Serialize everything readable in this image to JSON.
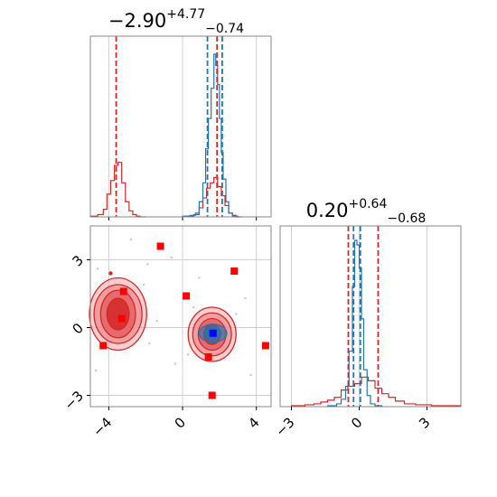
{
  "chart_data": {
    "type": "corner",
    "grid": true,
    "colors": {
      "red": "#d62728",
      "blue": "#1f77b4",
      "fill_light": "#f4a6a8",
      "fill_dark": "#d62728",
      "marker_red": "#ff0000",
      "marker_blue": "#0000ff",
      "frame": "#888888",
      "grid": "#d0d0d0"
    },
    "x_param": {
      "title": {
        "value": "−2.90",
        "plus": "+4.77",
        "minus": "−0.74"
      },
      "range": [
        -5.0,
        4.8
      ],
      "ticks": [
        -4,
        0,
        4
      ],
      "tick_labels": [
        "−4",
        "0",
        "4"
      ],
      "quantile_lines_red": [
        -3.6,
        1.87
      ],
      "quantile_lines_blue": [
        1.35,
        2.15
      ]
    },
    "y_param": {
      "title": {
        "value": "0.20",
        "plus": "+0.64",
        "minus": "−0.68"
      },
      "range": [
        -3.5,
        4.5
      ],
      "ticks": [
        -3,
        0,
        3
      ],
      "tick_labels": [
        "−3",
        "0",
        "3"
      ],
      "quantile_lines_red": [
        -0.48,
        0.84
      ],
      "quantile_lines_blue": [
        -0.25,
        0.05
      ]
    },
    "hist_x_red": {
      "bins": [
        -5.0,
        -4.6,
        -4.3,
        -4.1,
        -3.9,
        -3.7,
        -3.5,
        -3.3,
        -3.1,
        -2.9,
        -2.7,
        -2.5,
        -2.3,
        -2.0
      ],
      "counts": [
        1,
        3,
        10,
        30,
        48,
        68,
        72,
        45,
        20,
        8,
        3,
        1,
        0
      ]
    },
    "hist_x_red_right": {
      "bins": [
        0.2,
        0.6,
        0.9,
        1.1,
        1.3,
        1.5,
        1.7,
        1.9,
        2.1,
        2.3,
        2.5,
        2.7,
        2.9,
        3.2
      ],
      "counts": [
        1,
        3,
        12,
        25,
        38,
        45,
        52,
        40,
        28,
        15,
        5,
        2,
        0
      ]
    },
    "hist_x_blue": {
      "bins": [
        0.0,
        0.4,
        0.7,
        0.9,
        1.1,
        1.25,
        1.4,
        1.55,
        1.7,
        1.8,
        1.9,
        2.0,
        2.1,
        2.2,
        2.35,
        2.5,
        2.7,
        3.0
      ],
      "counts": [
        1,
        2,
        5,
        20,
        45,
        90,
        130,
        170,
        215,
        200,
        175,
        130,
        85,
        50,
        20,
        5,
        1
      ]
    },
    "hist_y_red": {
      "bins": [
        -3.0,
        -2.4,
        -2.0,
        -1.7,
        -1.4,
        -1.1,
        -0.8,
        -0.5,
        -0.2,
        0.1,
        0.4,
        0.7,
        1.0,
        1.3,
        1.6,
        2.0,
        2.5,
        3.2,
        4.5
      ],
      "counts": [
        1,
        2,
        3,
        5,
        7,
        10,
        18,
        22,
        25,
        32,
        28,
        20,
        14,
        10,
        6,
        3,
        2,
        1
      ]
    },
    "hist_y_blue": {
      "bins": [
        -1.4,
        -1.0,
        -0.8,
        -0.6,
        -0.45,
        -0.3,
        -0.2,
        -0.1,
        0.0,
        0.1,
        0.2,
        0.35,
        0.5,
        0.7,
        1.0
      ],
      "counts": [
        1,
        3,
        8,
        22,
        60,
        130,
        180,
        175,
        150,
        95,
        40,
        12,
        3,
        1
      ]
    },
    "contours_red": [
      {
        "cx": -3.5,
        "cy": 0.6,
        "levels": [
          [
            1.55,
            1.6
          ],
          [
            1.3,
            1.3
          ],
          [
            0.95,
            1.05
          ],
          [
            0.6,
            0.7
          ]
        ]
      },
      {
        "cx": 1.6,
        "cy": -0.3,
        "levels": [
          [
            1.3,
            1.2
          ],
          [
            1.05,
            0.95
          ],
          [
            0.75,
            0.7
          ],
          [
            0.45,
            0.45
          ]
        ]
      }
    ],
    "contours_blue": [
      {
        "cx": 1.65,
        "cy": -0.25,
        "levels": [
          [
            0.75,
            0.4
          ],
          [
            0.45,
            0.25
          ]
        ]
      }
    ],
    "markers_red": [
      {
        "x": -1.2,
        "y": 3.6
      },
      {
        "x": 2.8,
        "y": 2.5
      },
      {
        "x": -3.2,
        "y": 1.6
      },
      {
        "x": 0.2,
        "y": 1.4
      },
      {
        "x": -3.3,
        "y": 0.4
      },
      {
        "x": -4.3,
        "y": -0.8
      },
      {
        "x": 1.4,
        "y": -1.3
      },
      {
        "x": 1.6,
        "y": -3.0
      },
      {
        "x": 4.5,
        "y": -0.8
      }
    ],
    "marker_blue": {
      "x": 1.65,
      "y": -0.25
    },
    "scatter_light": [
      {
        "x": -2.8,
        "y": 3.9
      },
      {
        "x": -1.9,
        "y": 2.8
      },
      {
        "x": -0.6,
        "y": 3.1
      },
      {
        "x": 0.9,
        "y": 2.2
      },
      {
        "x": -4.6,
        "y": 2.6
      },
      {
        "x": -2.1,
        "y": 1.9
      },
      {
        "x": 3.4,
        "y": 1.3
      },
      {
        "x": -0.4,
        "y": -1.6
      },
      {
        "x": 0.3,
        "y": -1.2
      },
      {
        "x": -4.7,
        "y": -1.9
      },
      {
        "x": 3.7,
        "y": -2.1
      },
      {
        "x": -1.4,
        "y": 0.3
      },
      {
        "x": 2.9,
        "y": 0.6
      },
      {
        "x": -1.8,
        "y": -0.7
      },
      {
        "x": 0.6,
        "y": 0.9
      }
    ],
    "small_dot": {
      "x": -3.9,
      "y": 2.4
    }
  }
}
